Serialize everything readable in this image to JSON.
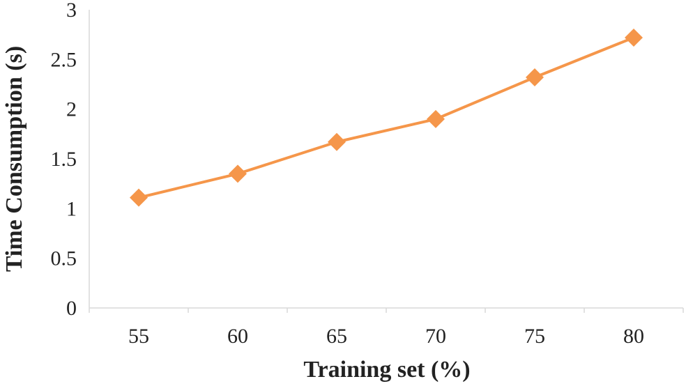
{
  "chart_data": {
    "type": "line",
    "title": "",
    "xlabel": "Training set (%)",
    "ylabel": "Time Consumption (s)",
    "categories": [
      "55",
      "60",
      "65",
      "70",
      "75",
      "80"
    ],
    "ylim": [
      0,
      3
    ],
    "yticks": [
      "0",
      "0.5",
      "1",
      "1.5",
      "2",
      "2.5",
      "3"
    ],
    "grid": false,
    "legend": "none",
    "series": [
      {
        "values": [
          1.11,
          1.35,
          1.67,
          1.9,
          2.32,
          2.72
        ],
        "color": "#F5964A",
        "marker": "diamond"
      }
    ],
    "axis_color": "#d9d9d9"
  }
}
